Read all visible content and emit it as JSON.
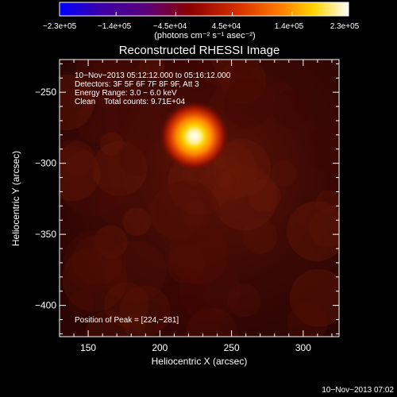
{
  "chart_data": {
    "type": "heatmap",
    "title": "Reconstructed RHESSI Image",
    "xlabel": "Heliocentric X (arcsec)",
    "ylabel": "Heliocentric Y (arcsec)",
    "xlim": [
      130,
      325
    ],
    "ylim": [
      -422,
      -227
    ],
    "x_ticks": [
      150,
      200,
      250,
      300
    ],
    "y_ticks": [
      -250,
      -300,
      -350,
      -400
    ],
    "x_tick_labels": [
      "150",
      "200",
      "250",
      "300"
    ],
    "y_tick_labels": [
      "−250",
      "−300",
      "−350",
      "−400"
    ],
    "colorbar": {
      "min": -230000,
      "max": 230000,
      "ticks": [
        -230000,
        -140000,
        -45000,
        45000,
        140000,
        230000
      ],
      "tick_labels": [
        "−2.3e+05",
        "−1.4e+05",
        "−4.5e+04",
        "4.5e+04",
        "1.4e+05",
        "2.3e+05"
      ],
      "unit_label": "(photons cm⁻² s⁻¹ asec⁻²)",
      "colors": [
        "#0000ff",
        "#3a00a8",
        "#5c0079",
        "#8a0000",
        "#d83000",
        "#ff7a00",
        "#ffd400",
        "#ffffff"
      ]
    },
    "info_lines": [
      "10−Nov−2013 05:12:12.000 to 05:16:12.000",
      "Detectors: 3F 5F 6F 7F 8F 9F, Att 3",
      "Energy Range: 3.0 − 6.0 keV",
      "Clean    Total counts: 9.71E+04"
    ],
    "peak": {
      "label": "Position of Peak = [224,−281]",
      "x": 224,
      "y": -281
    },
    "source": {
      "x": 224,
      "y": -281,
      "peak_value": 230000,
      "fwhm_arcsec": 11
    },
    "background_level": 20000
  },
  "timestamp": "10−Nov−2013 07:02"
}
